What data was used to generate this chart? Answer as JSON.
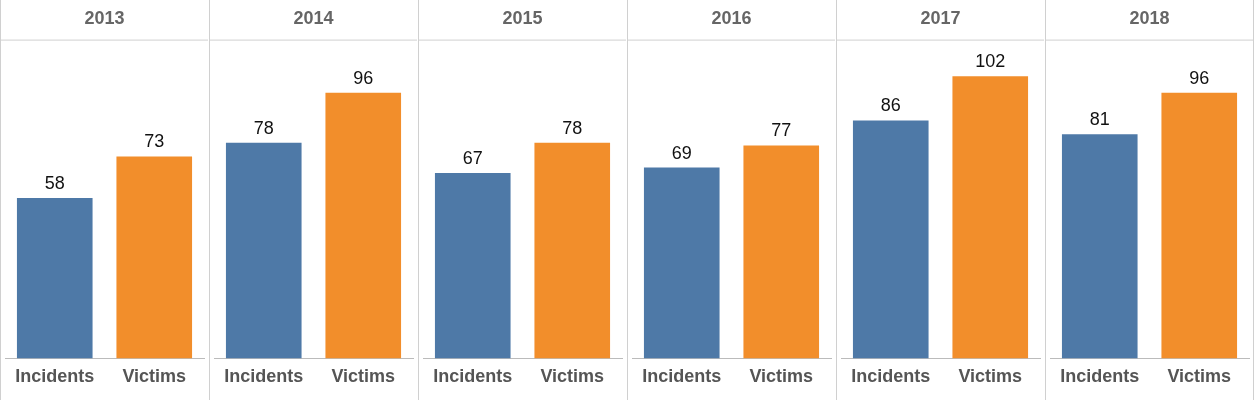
{
  "chart_data": [
    {
      "type": "bar",
      "title": "2013",
      "categories": [
        "Incidents",
        "Victims"
      ],
      "values": [
        58,
        73
      ],
      "colors": [
        "#4e79a7",
        "#f28e2b"
      ],
      "data_labels": true,
      "tick_labels": "x"
    },
    {
      "type": "bar",
      "title": "2014",
      "categories": [
        "Incidents",
        "Victims"
      ],
      "values": [
        78,
        96
      ],
      "colors": [
        "#4e79a7",
        "#f28e2b"
      ],
      "data_labels": true,
      "tick_labels": "x"
    },
    {
      "type": "bar",
      "title": "2015",
      "categories": [
        "Incidents",
        "Victims"
      ],
      "values": [
        67,
        78
      ],
      "colors": [
        "#4e79a7",
        "#f28e2b"
      ],
      "data_labels": true,
      "tick_labels": "x"
    },
    {
      "type": "bar",
      "title": "2016",
      "categories": [
        "Incidents",
        "Victims"
      ],
      "values": [
        69,
        77
      ],
      "colors": [
        "#4e79a7",
        "#f28e2b"
      ],
      "data_labels": true,
      "tick_labels": "x"
    },
    {
      "type": "bar",
      "title": "2017",
      "categories": [
        "Incidents",
        "Victims"
      ],
      "values": [
        86,
        102
      ],
      "colors": [
        "#4e79a7",
        "#f28e2b"
      ],
      "data_labels": true,
      "tick_labels": "x"
    },
    {
      "type": "bar",
      "title": "2018",
      "categories": [
        "Incidents",
        "Victims"
      ],
      "values": [
        81,
        96
      ],
      "colors": [
        "#4e79a7",
        "#f28e2b"
      ],
      "data_labels": true,
      "tick_labels": "x"
    }
  ]
}
